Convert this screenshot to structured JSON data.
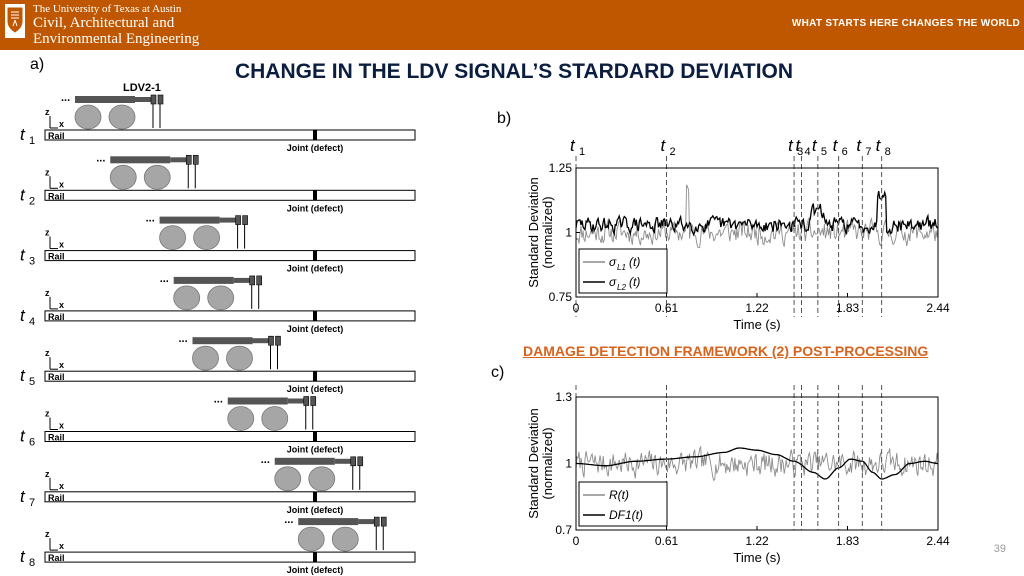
{
  "header": {
    "university": "The University of Texas at Austin",
    "department_line1": "Civil, Architectural and",
    "department_line2": "Environmental Engineering",
    "tagline": "WHAT STARTS HERE CHANGES THE WORLD"
  },
  "slide": {
    "title": "CHANGE IN THE LDV SIGNAL’S STARDARD DEVIATION",
    "section_title": "DAMAGE DETECTION  FRAMEWORK (2) POST-PROCESSING",
    "page_number": "39"
  },
  "panels": {
    "a": "a)",
    "b": "b)",
    "c": "c)"
  },
  "schematic": {
    "ldv_label": "LDV2-1",
    "rail_label": "Rail",
    "joint_label": "Joint (defect)",
    "axis_z": "z",
    "axis_x": "x",
    "ellipsis": "...",
    "time_labels": [
      "t",
      "t",
      "t",
      "t",
      "t",
      "t",
      "t",
      "t"
    ],
    "time_subscripts": [
      "1",
      "2",
      "3",
      "4",
      "5",
      "6",
      "7",
      "8"
    ],
    "vehicle_positions": [
      0.0,
      0.15,
      0.36,
      0.42,
      0.5,
      0.65,
      0.85,
      0.95
    ]
  },
  "colors": {
    "header": "#bf5700",
    "title": "#0b1e3f",
    "section": "#d9631c",
    "vehicle": "#555555",
    "wheel": "#a6a6a6",
    "series_gray": "#8c8c8c",
    "series_black": "#000000"
  },
  "chart_data": [
    {
      "type": "line",
      "panel": "b",
      "ylabel_line1": "Standard Deviation",
      "ylabel_line2": "(normalized)",
      "xlabel": "Time (s)",
      "xlim": [
        0,
        2.44
      ],
      "ylim": [
        0.75,
        1.25
      ],
      "xticks": [
        "0",
        "0.61",
        "1.22",
        "1.83",
        "2.44"
      ],
      "xtick_values": [
        0,
        0.61,
        1.22,
        1.83,
        2.44
      ],
      "yticks": [
        "0.75",
        "1",
        "1.25"
      ],
      "ytick_values": [
        0.75,
        1,
        1.25
      ],
      "legend_position": "bottom-left",
      "series": [
        {
          "name": "σL1(t)",
          "legend_main": "σ",
          "legend_sub": "L1",
          "legend_tail": "(t)",
          "color": "#8c8c8c",
          "seed": 11,
          "noise": 0.07,
          "baseline": 1.0
        },
        {
          "name": "σL2(t)",
          "legend_main": "σ",
          "legend_sub": "L2",
          "legend_tail": "(t)",
          "color": "#000000",
          "seed": 29,
          "noise": 0.045,
          "baseline": 1.03
        }
      ],
      "markers": [
        {
          "label": "t",
          "sub": "1",
          "x": 0.0
        },
        {
          "label": "t",
          "sub": "2",
          "x": 0.61
        },
        {
          "label": "t",
          "sub": "3",
          "x": 1.47
        },
        {
          "label": "t",
          "sub": "4",
          "x": 1.52
        },
        {
          "label": "t",
          "sub": "5",
          "x": 1.63
        },
        {
          "label": "t",
          "sub": "6",
          "x": 1.77
        },
        {
          "label": "t",
          "sub": "7",
          "x": 1.93
        },
        {
          "label": "t",
          "sub": "8",
          "x": 2.06
        }
      ]
    },
    {
      "type": "line",
      "panel": "c",
      "ylabel_line1": "Standard Deviation",
      "ylabel_line2": "(normalized)",
      "xlabel": "Time (s)",
      "xlim": [
        0,
        2.44
      ],
      "ylim": [
        0.7,
        1.3
      ],
      "xticks": [
        "0",
        "0.61",
        "1.22",
        "1.83",
        "2.44"
      ],
      "xtick_values": [
        0,
        0.61,
        1.22,
        1.83,
        2.44
      ],
      "yticks": [
        "0.7",
        "1",
        "1.3"
      ],
      "ytick_values": [
        0.7,
        1,
        1.3
      ],
      "legend_position": "bottom-left",
      "series": [
        {
          "name": "R(t)",
          "legend_main": "R(t)",
          "legend_sub": "",
          "legend_tail": "",
          "color": "#8c8c8c",
          "seed": 7,
          "noise": 0.09,
          "baseline": 1.0
        },
        {
          "name": "DF1(t)",
          "legend_main": "DF1(t)",
          "legend_sub": "",
          "legend_tail": "",
          "color": "#000000",
          "seed": 0,
          "noise": 0.0,
          "baseline": 1.0
        }
      ],
      "df_curve": {
        "x": [
          0,
          0.2,
          0.4,
          0.61,
          0.8,
          1.0,
          1.1,
          1.22,
          1.35,
          1.47,
          1.6,
          1.68,
          1.77,
          1.85,
          1.93,
          2.0,
          2.06,
          2.15,
          2.25,
          2.35,
          2.44
        ],
        "y": [
          1.0,
          0.99,
          1.01,
          1.02,
          1.03,
          1.05,
          1.07,
          1.06,
          1.04,
          1.01,
          0.96,
          0.93,
          0.98,
          1.02,
          1.01,
          0.96,
          0.93,
          0.95,
          1.0,
          1.01,
          1.0
        ]
      },
      "markers": [
        {
          "x": 0.0
        },
        {
          "x": 0.61
        },
        {
          "x": 1.47
        },
        {
          "x": 1.52
        },
        {
          "x": 1.63
        },
        {
          "x": 1.77
        },
        {
          "x": 1.93
        },
        {
          "x": 2.06
        }
      ]
    }
  ]
}
